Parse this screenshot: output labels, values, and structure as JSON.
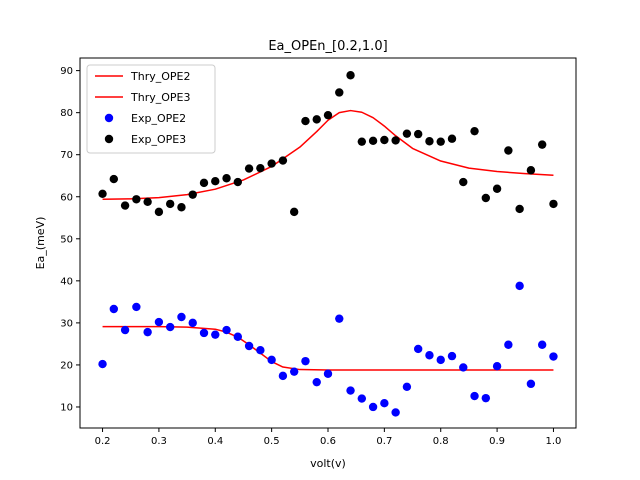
{
  "chart_data": {
    "type": "scatter",
    "title": "Ea_OPEn_[0.2,1.0]",
    "xlabel": "volt(v)",
    "ylabel": "Ea_(meV)",
    "xlim": [
      0.16,
      1.04
    ],
    "ylim": [
      5,
      93
    ],
    "xticks": [
      "0.2",
      "0.3",
      "0.4",
      "0.5",
      "0.6",
      "0.7",
      "0.8",
      "0.9",
      "1.0"
    ],
    "yticks": [
      "10",
      "20",
      "30",
      "40",
      "50",
      "60",
      "70",
      "80",
      "90"
    ],
    "legend_position": "top-left",
    "grid": false,
    "series": [
      {
        "name": "Thry_OPE2",
        "kind": "line",
        "color": "#ff0000",
        "x": [
          0.2,
          0.3,
          0.35,
          0.4,
          0.42,
          0.44,
          0.46,
          0.48,
          0.5,
          0.52,
          0.55,
          0.6,
          0.7,
          0.8,
          0.9,
          1.0
        ],
        "y": [
          29.1,
          29.1,
          29.0,
          28.5,
          27.8,
          26.6,
          24.8,
          22.8,
          20.8,
          19.5,
          18.9,
          18.8,
          18.8,
          18.8,
          18.8,
          18.8
        ]
      },
      {
        "name": "Thry_OPE3",
        "kind": "line",
        "color": "#ff0000",
        "x": [
          0.2,
          0.25,
          0.3,
          0.35,
          0.4,
          0.45,
          0.5,
          0.55,
          0.58,
          0.6,
          0.62,
          0.64,
          0.66,
          0.68,
          0.7,
          0.72,
          0.75,
          0.8,
          0.85,
          0.9,
          0.95,
          1.0
        ],
        "y": [
          59.4,
          59.5,
          59.8,
          60.5,
          61.8,
          64.0,
          67.2,
          71.8,
          75.5,
          78.2,
          80.0,
          80.5,
          80.1,
          78.8,
          76.8,
          74.5,
          71.5,
          68.5,
          66.8,
          66.0,
          65.5,
          65.1
        ]
      },
      {
        "name": "Exp_OPE2",
        "kind": "scatter",
        "color": "#0000ff",
        "x": [
          0.2,
          0.22,
          0.24,
          0.26,
          0.28,
          0.3,
          0.32,
          0.34,
          0.36,
          0.38,
          0.4,
          0.42,
          0.44,
          0.46,
          0.48,
          0.5,
          0.52,
          0.54,
          0.56,
          0.58,
          0.6,
          0.62,
          0.64,
          0.66,
          0.68,
          0.7,
          0.72,
          0.74,
          0.76,
          0.78,
          0.8,
          0.82,
          0.84,
          0.86,
          0.88,
          0.9,
          0.92,
          0.94,
          0.96,
          0.98,
          1.0
        ],
        "y": [
          20.2,
          33.3,
          28.3,
          33.8,
          27.8,
          30.2,
          29.0,
          31.4,
          30.0,
          27.6,
          27.2,
          28.3,
          26.7,
          24.5,
          23.5,
          21.2,
          17.4,
          18.4,
          20.9,
          15.9,
          17.9,
          31.0,
          13.9,
          12.0,
          10.0,
          10.9,
          8.7,
          14.8,
          23.8,
          22.3,
          21.2,
          22.1,
          19.4,
          12.6,
          12.1,
          19.7,
          24.8,
          38.8,
          15.5,
          24.8,
          22.0
        ]
      },
      {
        "name": "Exp_OPE3",
        "kind": "scatter",
        "color": "#000000",
        "x": [
          0.2,
          0.22,
          0.24,
          0.26,
          0.28,
          0.3,
          0.32,
          0.34,
          0.36,
          0.38,
          0.4,
          0.42,
          0.44,
          0.46,
          0.48,
          0.5,
          0.52,
          0.54,
          0.56,
          0.58,
          0.6,
          0.62,
          0.64,
          0.66,
          0.68,
          0.7,
          0.72,
          0.74,
          0.76,
          0.78,
          0.8,
          0.82,
          0.84,
          0.86,
          0.88,
          0.9,
          0.92,
          0.94,
          0.96,
          0.98,
          1.0
        ],
        "y": [
          60.7,
          64.2,
          57.9,
          59.4,
          58.8,
          56.4,
          58.3,
          57.5,
          60.5,
          63.3,
          63.7,
          64.4,
          63.5,
          66.7,
          66.8,
          67.9,
          68.6,
          56.4,
          78.0,
          78.4,
          79.4,
          84.8,
          88.9,
          73.1,
          73.3,
          73.5,
          73.4,
          75.0,
          74.9,
          73.2,
          73.1,
          73.8,
          63.5,
          75.6,
          59.7,
          61.9,
          71.0,
          57.1,
          66.3,
          72.4,
          58.3
        ]
      }
    ]
  }
}
